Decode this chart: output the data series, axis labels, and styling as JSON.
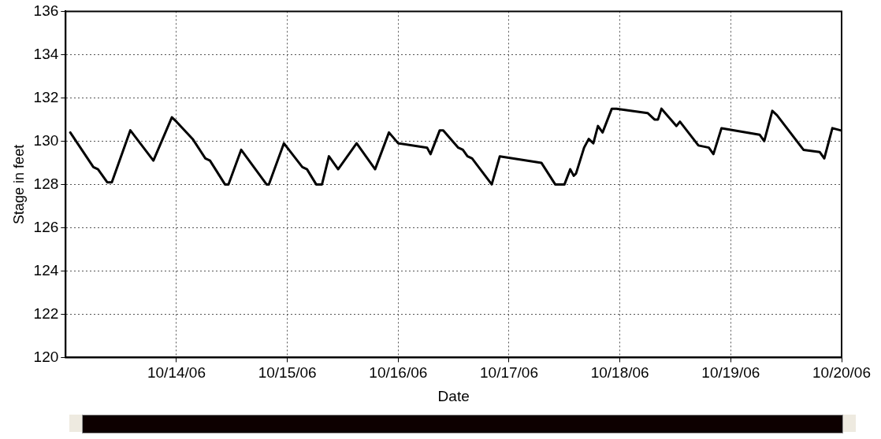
{
  "chart_data": {
    "type": "line",
    "xlabel": "Date",
    "ylabel": "Stage in feet",
    "x": [
      "--10-13T01:00",
      "--10-13T06:00",
      "--10-13T07:00",
      "--10-13T09:00",
      "--10-13T10:00",
      "--10-13T14:00",
      "--10-13T19:00",
      "--10-13T23:00",
      "--10-14T00:00",
      "--10-14T03:30",
      "--10-14T06:15",
      "--10-14T07:15",
      "--10-14T10:30",
      "--10-14T11:15",
      "--10-14T14:00",
      "--10-14T19:30",
      "--10-14T20:00",
      "--10-14T23:15",
      "--10-15T03:15",
      "--10-15T04:15",
      "--10-15T06:15",
      "--10-15T07:30",
      "--10-15T09:00",
      "--10-15T11:00",
      "--10-15T15:00",
      "--10-15T19:00",
      "--10-15T22:00",
      "--10-16T00:00",
      "--10-16T06:15",
      "--10-16T07:00",
      "--10-16T09:00",
      "--10-16T09:45",
      "--10-16T13:00",
      "--10-16T14:00",
      "--10-16T15:00",
      "--10-16T16:00",
      "--10-16T20:15",
      "--10-16T22:00",
      "--10-17T07:00",
      "--10-17T10:00",
      "--10-17T12:00",
      "--10-17T13:15",
      "--10-17T14:00",
      "--10-17T14:30",
      "--10-17T16:15",
      "--10-17T17:15",
      "--10-17T18:15",
      "--10-17T19:15",
      "--10-17T20:15",
      "--10-17T22:15",
      "--10-17T23:15",
      "--10-18T06:00",
      "--10-18T07:30",
      "--10-18T08:15",
      "--10-18T09:00",
      "--10-18T12:15",
      "--10-18T13:00",
      "--10-18T17:00",
      "--10-18T19:15",
      "--10-18T20:15",
      "--10-18T22:00",
      "--10-19T06:15",
      "--10-19T07:15",
      "--10-19T09:00",
      "--10-19T10:00",
      "--10-19T15:45",
      "--10-19T19:15",
      "--10-19T20:15",
      "--10-19T22:00",
      "--10-19T23:45"
    ],
    "series": [
      {
        "color": "#000000",
        "values": [
          130.4,
          128.8,
          128.7,
          128.1,
          128.1,
          130.5,
          129.1,
          131.1,
          130.9,
          130.1,
          129.2,
          129.1,
          128.0,
          128.0,
          129.6,
          128.0,
          128.0,
          129.9,
          128.8,
          128.7,
          128.0,
          128.0,
          129.3,
          128.7,
          129.9,
          128.7,
          130.4,
          129.9,
          129.7,
          129.4,
          130.5,
          130.5,
          129.7,
          129.6,
          129.3,
          129.2,
          128.0,
          129.3,
          129.0,
          128.0,
          128.0,
          128.7,
          128.4,
          128.5,
          129.7,
          130.1,
          129.9,
          130.7,
          130.4,
          131.5,
          131.5,
          131.3,
          131.0,
          131.0,
          131.5,
          130.7,
          130.9,
          129.8,
          129.7,
          129.4,
          130.6,
          130.3,
          130.0,
          131.4,
          131.2,
          129.6,
          129.5,
          129.2,
          130.6,
          130.5
        ]
      }
    ],
    "xlim": [
      "--10-13",
      "--10-20"
    ],
    "xticks": [
      {
        "value": "--10-14",
        "label": "10/14/06"
      },
      {
        "value": "--10-15",
        "label": "10/15/06"
      },
      {
        "value": "--10-16",
        "label": "10/16/06"
      },
      {
        "value": "--10-17",
        "label": "10/17/06"
      },
      {
        "value": "--10-18",
        "label": "10/18/06"
      },
      {
        "value": "--10-19",
        "label": "10/19/06"
      },
      {
        "value": "--10-20",
        "label": "10/20/06"
      }
    ],
    "ylim": [
      120,
      136
    ],
    "yticks": [
      120,
      122,
      124,
      126,
      128,
      130,
      132,
      134,
      136
    ],
    "grid": true,
    "legend": false,
    "marker": "none",
    "line_style": "solid"
  }
}
